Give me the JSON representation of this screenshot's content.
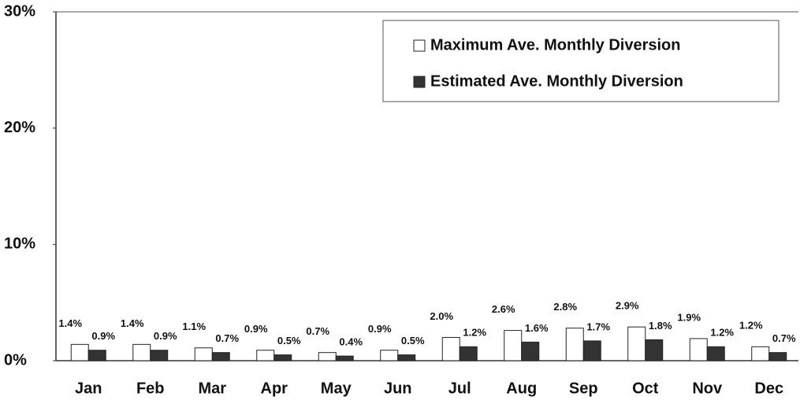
{
  "chart_data": {
    "type": "bar",
    "categories": [
      "Jan",
      "Feb",
      "Mar",
      "Apr",
      "May",
      "Jun",
      "Jul",
      "Aug",
      "Sep",
      "Oct",
      "Nov",
      "Dec"
    ],
    "series": [
      {
        "name": "Maximum Ave. Monthly Diversion",
        "color": "#ffffff",
        "values": [
          1.4,
          1.4,
          1.1,
          0.9,
          0.7,
          0.9,
          2.0,
          2.6,
          2.8,
          2.9,
          1.9,
          1.2
        ],
        "value_labels": [
          "1.4%",
          "1.4%",
          "1.1%",
          "0.9%",
          "0.7%",
          "0.9%",
          "2.0%",
          "2.6%",
          "2.8%",
          "2.9%",
          "1.9%",
          "1.2%"
        ]
      },
      {
        "name": "Estimated Ave. Monthly Diversion",
        "color": "#333333",
        "values": [
          0.9,
          0.9,
          0.7,
          0.5,
          0.4,
          0.5,
          1.2,
          1.6,
          1.7,
          1.8,
          1.2,
          0.7
        ],
        "value_labels": [
          "0.9%",
          "0.9%",
          "0.7%",
          "0.5%",
          "0.4%",
          "0.5%",
          "1.2%",
          "1.6%",
          "1.7%",
          "1.8%",
          "1.2%",
          "0.7%"
        ]
      }
    ],
    "ylim": [
      0,
      30
    ],
    "yticks": [
      {
        "value": 0,
        "label": "0%"
      },
      {
        "value": 10,
        "label": "10%"
      },
      {
        "value": 20,
        "label": "20%"
      },
      {
        "value": 30,
        "label": "30%"
      }
    ],
    "legend": "upper right"
  }
}
